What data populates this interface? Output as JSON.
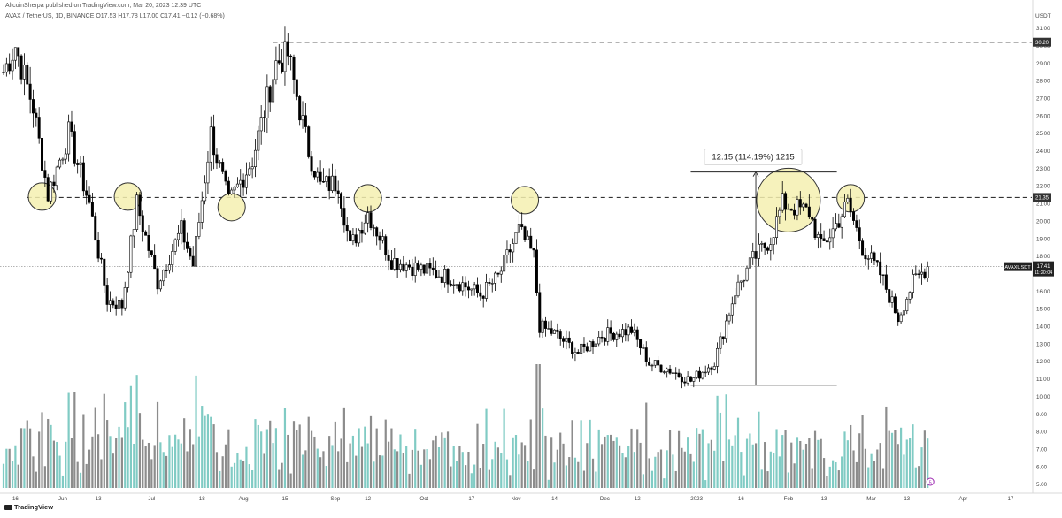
{
  "header": {
    "publisher_line": "AltcoinSherpa published on TradingView.com, Mar 20, 2023 12:39 UTC",
    "symbol_line": "AVAX / TetherUS, 1D, BINANCE  O17.53  H17.78  L17.00  C17.41  −0.12 (−0.68%)"
  },
  "footer": {
    "logo": "TradingView"
  },
  "colors": {
    "background": "#ffffff",
    "candle": "#000000",
    "volume_up": "#80cbc4",
    "volume_down": "#8c8c8c",
    "highlight_circle": "#f5f0b0",
    "current_price_line": "#999999",
    "level_line": "#333333"
  },
  "chart_data": {
    "type": "candlestick",
    "symbol": "AVAXUSDT",
    "timeframe": "1D",
    "ylim": [
      5.0,
      32.0
    ],
    "y_ticks": [
      5.0,
      6.0,
      7.0,
      8.0,
      9.0,
      10.0,
      11.0,
      12.0,
      13.0,
      14.0,
      15.0,
      16.0,
      17.0,
      18.0,
      19.0,
      20.0,
      21.0,
      22.0,
      23.0,
      24.0,
      25.0,
      26.0,
      27.0,
      28.0,
      29.0,
      30.0,
      31.0
    ],
    "y_tick_labels": [
      "5.00",
      "6.00",
      "7.00",
      "8.00",
      "9.00",
      "10.00",
      "11.00",
      "12.00",
      "13.00",
      "14.00",
      "15.00",
      "16.00",
      "17.00",
      "18.00",
      "19.00",
      "20.00",
      "21.00",
      "22.00",
      "23.00",
      "24.00",
      "25.00",
      "26.00",
      "27.00",
      "28.00",
      "29.00",
      "30.00",
      "31.00"
    ],
    "y_axis_label": "USDT",
    "x_axis_range": [
      "2022-05-12",
      "2023-04-23"
    ],
    "x_ticks": [
      {
        "date": "2022-05-16",
        "label": "16"
      },
      {
        "date": "2022-06-01",
        "label": "Jun"
      },
      {
        "date": "2022-06-13",
        "label": "13"
      },
      {
        "date": "2022-07-01",
        "label": "Jul"
      },
      {
        "date": "2022-07-18",
        "label": "18"
      },
      {
        "date": "2022-08-01",
        "label": "Aug"
      },
      {
        "date": "2022-08-15",
        "label": "15"
      },
      {
        "date": "2022-09-01",
        "label": "Sep"
      },
      {
        "date": "2022-09-12",
        "label": "12"
      },
      {
        "date": "2022-10-01",
        "label": "Oct"
      },
      {
        "date": "2022-10-17",
        "label": "17"
      },
      {
        "date": "2022-11-01",
        "label": "Nov"
      },
      {
        "date": "2022-11-14",
        "label": "14"
      },
      {
        "date": "2022-12-01",
        "label": "Dec"
      },
      {
        "date": "2022-12-12",
        "label": "12"
      },
      {
        "date": "2023-01-01",
        "label": "2023"
      },
      {
        "date": "2023-01-16",
        "label": "16"
      },
      {
        "date": "2023-02-01",
        "label": "Feb"
      },
      {
        "date": "2023-02-13",
        "label": "13"
      },
      {
        "date": "2023-03-01",
        "label": "Mar"
      },
      {
        "date": "2023-03-13",
        "label": "13"
      },
      {
        "date": "2023-04-01",
        "label": "Apr"
      },
      {
        "date": "2023-04-17",
        "label": "17"
      }
    ],
    "anchors": [
      {
        "date": "2022-05-12",
        "price": 28.5
      },
      {
        "date": "2022-05-16",
        "price": 30.0
      },
      {
        "date": "2022-05-22",
        "price": 26.5
      },
      {
        "date": "2022-05-27",
        "price": 21.5
      },
      {
        "date": "2022-06-03",
        "price": 25.0
      },
      {
        "date": "2022-06-10",
        "price": 21.0
      },
      {
        "date": "2022-06-16",
        "price": 15.5
      },
      {
        "date": "2022-06-21",
        "price": 15.2
      },
      {
        "date": "2022-06-26",
        "price": 21.0
      },
      {
        "date": "2022-07-03",
        "price": 16.5
      },
      {
        "date": "2022-07-11",
        "price": 19.5
      },
      {
        "date": "2022-07-15",
        "price": 17.5
      },
      {
        "date": "2022-07-21",
        "price": 25.0
      },
      {
        "date": "2022-07-27",
        "price": 21.0
      },
      {
        "date": "2022-08-04",
        "price": 23.5
      },
      {
        "date": "2022-08-12",
        "price": 29.0
      },
      {
        "date": "2022-08-16",
        "price": 29.5
      },
      {
        "date": "2022-08-23",
        "price": 24.0
      },
      {
        "date": "2022-08-27",
        "price": 22.0
      },
      {
        "date": "2022-09-02",
        "price": 22.2
      },
      {
        "date": "2022-09-06",
        "price": 18.5
      },
      {
        "date": "2022-09-12",
        "price": 20.5
      },
      {
        "date": "2022-09-14",
        "price": 19.8
      },
      {
        "date": "2022-09-20",
        "price": 17.8
      },
      {
        "date": "2022-10-01",
        "price": 17.2
      },
      {
        "date": "2022-10-10",
        "price": 16.8
      },
      {
        "date": "2022-10-20",
        "price": 15.8
      },
      {
        "date": "2022-10-26",
        "price": 16.8
      },
      {
        "date": "2022-11-02",
        "price": 19.5
      },
      {
        "date": "2022-11-07",
        "price": 18.0
      },
      {
        "date": "2022-11-09",
        "price": 14.0
      },
      {
        "date": "2022-11-14",
        "price": 13.6
      },
      {
        "date": "2022-11-22",
        "price": 12.5
      },
      {
        "date": "2022-11-30",
        "price": 13.5
      },
      {
        "date": "2022-12-10",
        "price": 13.8
      },
      {
        "date": "2022-12-16",
        "price": 11.9
      },
      {
        "date": "2022-12-22",
        "price": 11.6
      },
      {
        "date": "2022-12-30",
        "price": 10.9
      },
      {
        "date": "2023-01-07",
        "price": 12.0
      },
      {
        "date": "2023-01-14",
        "price": 16.0
      },
      {
        "date": "2023-01-20",
        "price": 17.8
      },
      {
        "date": "2023-01-26",
        "price": 19.0
      },
      {
        "date": "2023-01-30",
        "price": 21.0
      },
      {
        "date": "2023-02-08",
        "price": 20.5
      },
      {
        "date": "2023-02-12",
        "price": 18.5
      },
      {
        "date": "2023-02-16",
        "price": 19.5
      },
      {
        "date": "2023-02-21",
        "price": 21.0
      },
      {
        "date": "2023-02-26",
        "price": 18.5
      },
      {
        "date": "2023-03-04",
        "price": 17.0
      },
      {
        "date": "2023-03-10",
        "price": 14.5
      },
      {
        "date": "2023-03-15",
        "price": 16.5
      },
      {
        "date": "2023-03-20",
        "price": 17.41
      }
    ],
    "horizontal_levels": [
      {
        "price": 30.2,
        "label": "30.20",
        "start_date": "2022-08-11"
      },
      {
        "price": 21.35,
        "label": "21.35",
        "start_date": "2022-05-20"
      }
    ],
    "current_price": {
      "price": 17.41,
      "label": "17.41",
      "pair_label": "AVAXUSDT",
      "countdown": "11:20:04"
    },
    "highlighted_touches": [
      {
        "date": "2022-05-25",
        "price": 21.4,
        "size": "small"
      },
      {
        "date": "2022-06-23",
        "price": 21.4,
        "size": "small"
      },
      {
        "date": "2022-07-28",
        "price": 20.8,
        "size": "small"
      },
      {
        "date": "2022-09-12",
        "price": 21.3,
        "size": "small"
      },
      {
        "date": "2022-11-04",
        "price": 21.2,
        "size": "small"
      },
      {
        "date": "2023-02-01",
        "price": 21.2,
        "size": "large"
      },
      {
        "date": "2023-02-22",
        "price": 21.3,
        "size": "small"
      }
    ],
    "measurement": {
      "label": "12.15 (114.19%) 1215",
      "start_date": "2022-12-30",
      "end_date": "2023-02-03",
      "low": 10.65,
      "high": 22.8
    },
    "volume_marker": "5"
  }
}
